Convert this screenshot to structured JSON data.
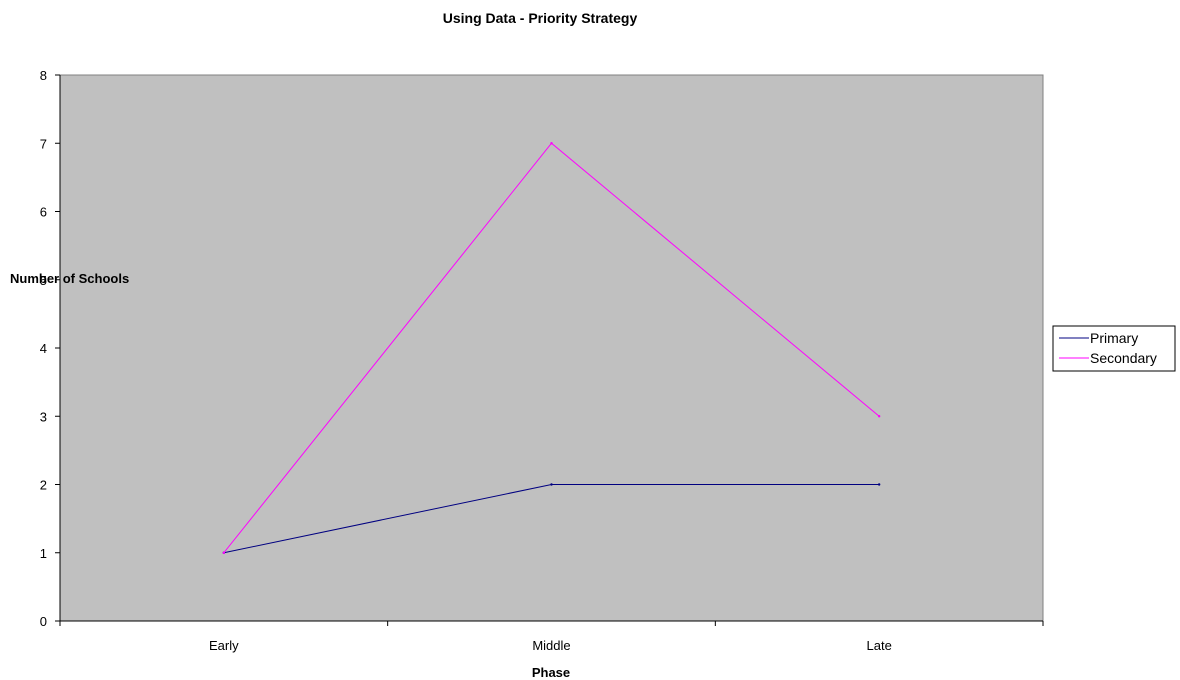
{
  "chart_data": {
    "type": "line",
    "title": "Using Data - Priority Strategy",
    "xlabel": "Phase",
    "ylabel": "Number of Schools",
    "categories": [
      "Early",
      "Middle",
      "Late"
    ],
    "ylim": [
      0,
      8
    ],
    "yticks": [
      "0",
      "1",
      "2",
      "3",
      "4",
      "5",
      "6",
      "7",
      "8"
    ],
    "grid": false,
    "legend_position": "right",
    "plot_background": "#c0c0c0",
    "series": [
      {
        "name": "Primary",
        "values": [
          1,
          2,
          2
        ],
        "color": "#000080"
      },
      {
        "name": "Secondary",
        "values": [
          1,
          7,
          3
        ],
        "color": "#ff00ff"
      }
    ]
  }
}
